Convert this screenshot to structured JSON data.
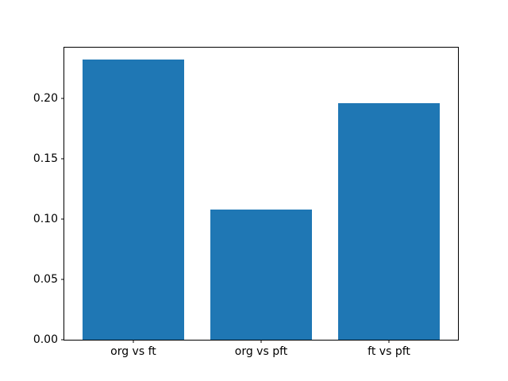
{
  "figure": {
    "background_color": "#ffffff",
    "bar_color": "#1f77b4",
    "axis_color": "#000000",
    "text_color": "#000000"
  },
  "chart_data": {
    "type": "bar",
    "categories": [
      "org vs ft",
      "org vs pft",
      "ft vs pft"
    ],
    "values": [
      0.232,
      0.108,
      0.196
    ],
    "title": "",
    "xlabel": "",
    "ylabel": "",
    "ylim": [
      0,
      0.242
    ],
    "yticks": [
      0.0,
      0.05,
      0.1,
      0.15,
      0.2
    ],
    "ytick_labels": [
      "0.00",
      "0.05",
      "0.10",
      "0.15",
      "0.20"
    ],
    "bar_width_fraction": 0.8,
    "x_axis_range": [
      -0.54,
      2.54
    ],
    "grid": false,
    "legend_position": "none"
  }
}
